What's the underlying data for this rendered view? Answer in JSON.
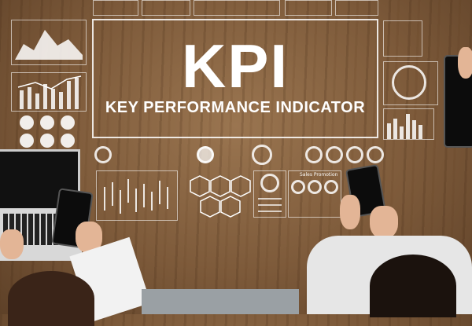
{
  "headline": {
    "title": "KPI",
    "subtitle": "KEY PERFORMANCE INDICATOR"
  },
  "panels": {
    "sales_label": "Sales Promotion"
  },
  "colors": {
    "wood": "#8a6644",
    "overlay": "#ffffff"
  }
}
